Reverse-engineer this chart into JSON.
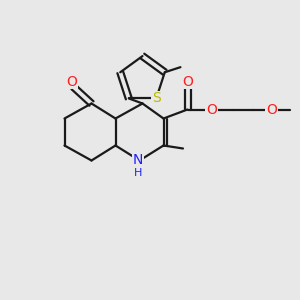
{
  "background_color": "#e8e8e8",
  "bond_color": "#1a1a1a",
  "nitrogen_color": "#2020ff",
  "oxygen_color": "#ff2020",
  "sulfur_color": "#bbbb00",
  "lw": 1.6,
  "fs": 9,
  "xlim": [
    0,
    10
  ],
  "ylim": [
    0,
    10
  ]
}
